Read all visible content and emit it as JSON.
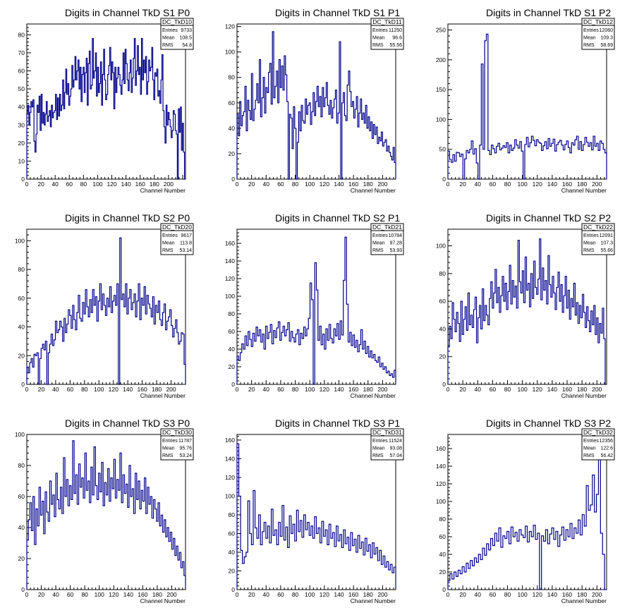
{
  "chart_data": [
    {
      "type": "histogram",
      "title": "Digits in Channel TkD S1 P0",
      "xlabel": "Channel Number",
      "xlim": [
        0,
        224
      ],
      "ylim": [
        0,
        86
      ],
      "xticks": [
        0,
        20,
        40,
        60,
        80,
        100,
        120,
        140,
        160,
        180,
        200
      ],
      "yticks": [
        0,
        10,
        20,
        30,
        40,
        50,
        60,
        70,
        80
      ],
      "stats": {
        "name": "DC_TkD10",
        "entries_label": "Entries",
        "entries": "9733",
        "mean_label": "Mean",
        "mean": "108.5",
        "rms_label": "RMS",
        "rms": "54.8"
      },
      "values": [
        36,
        41,
        30,
        37,
        43,
        40,
        44,
        21,
        15,
        25,
        41,
        37,
        46,
        27,
        47,
        31,
        37,
        30,
        36,
        43,
        32,
        35,
        38,
        29,
        41,
        34,
        37,
        38,
        47,
        33,
        45,
        35,
        47,
        38,
        41,
        55,
        39,
        48,
        61,
        47,
        53,
        41,
        46,
        50,
        63,
        51,
        55,
        68,
        55,
        60,
        66,
        50,
        62,
        43,
        58,
        62,
        48,
        59,
        67,
        41,
        64,
        71,
        50,
        52,
        78,
        56,
        60,
        70,
        46,
        62,
        48,
        53,
        65,
        41,
        58,
        72,
        55,
        44,
        47,
        58,
        63,
        73,
        55,
        65,
        59,
        39,
        62,
        48,
        56,
        62,
        58,
        52,
        47,
        55,
        70,
        53,
        72,
        64,
        55,
        49,
        59,
        66,
        48,
        56,
        67,
        78,
        52,
        60,
        74,
        58,
        62,
        47,
        78,
        55,
        66,
        59,
        68,
        47,
        54,
        66,
        60,
        62,
        73,
        55,
        44,
        59,
        57,
        61,
        46,
        49,
        42,
        55,
        69,
        38,
        29,
        20,
        41,
        30,
        37,
        33,
        29,
        23,
        27,
        38,
        36,
        27,
        25,
        0,
        39,
        26,
        40,
        16,
        31,
        15,
        0
      ]
    },
    {
      "type": "histogram",
      "title": "Digits in Channel TkD S1 P1",
      "xlabel": "Channel Number",
      "xlim": [
        0,
        218
      ],
      "ylim": [
        0,
        122
      ],
      "xticks": [
        0,
        20,
        40,
        60,
        80,
        100,
        120,
        140,
        160,
        180,
        200
      ],
      "yticks": [
        0,
        20,
        40,
        60,
        80,
        100,
        120
      ],
      "stats": {
        "name": "DC_TkD11",
        "entries_label": "Entries",
        "entries": "11250",
        "mean_label": "Mean",
        "mean": "96.6",
        "rms_label": "RMS",
        "rms": "55.56"
      },
      "values": [
        51,
        34,
        61,
        42,
        50,
        53,
        73,
        38,
        62,
        54,
        47,
        83,
        46,
        55,
        62,
        75,
        60,
        94,
        49,
        64,
        80,
        52,
        72,
        68,
        84,
        91,
        59,
        116,
        64,
        73,
        85,
        60,
        94,
        72,
        89,
        70,
        97,
        82,
        61,
        0,
        51,
        48,
        24,
        57,
        40,
        0,
        29,
        53,
        38,
        58,
        46,
        44,
        63,
        51,
        58,
        60,
        43,
        53,
        68,
        50,
        61,
        73,
        57,
        65,
        49,
        72,
        57,
        64,
        76,
        58,
        51,
        62,
        48,
        56,
        63,
        70,
        44,
        52,
        108,
        0,
        60,
        68,
        50,
        46,
        74,
        85,
        69,
        57,
        61,
        48,
        55,
        65,
        41,
        52,
        63,
        47,
        52,
        44,
        58,
        40,
        49,
        38,
        45,
        32,
        43,
        35,
        41,
        28,
        33,
        30,
        37,
        26,
        29,
        31,
        22,
        26,
        21,
        18,
        15,
        25,
        13
      ]
    },
    {
      "type": "histogram",
      "title": "Digits in Channel TkD S1 P2",
      "xlabel": "Channel Number",
      "xlim": [
        0,
        213
      ],
      "ylim": [
        0,
        260
      ],
      "xticks": [
        0,
        20,
        40,
        60,
        80,
        100,
        120,
        140,
        160,
        180,
        200
      ],
      "yticks": [
        0,
        50,
        100,
        150,
        200,
        250
      ],
      "stats": {
        "name": "DC_TkD12",
        "entries_label": "Entries",
        "entries": "12060",
        "mean_label": "Mean",
        "mean": "109.3",
        "rms_label": "RMS",
        "rms": "58.69"
      },
      "values": [
        47,
        33,
        28,
        41,
        30,
        45,
        44,
        38,
        42,
        0,
        34,
        48,
        44,
        50,
        64,
        42,
        51,
        27,
        0,
        57,
        193,
        50,
        232,
        243,
        48,
        41,
        57,
        51,
        44,
        55,
        60,
        49,
        52,
        56,
        53,
        61,
        44,
        57,
        48,
        52,
        66,
        57,
        52,
        63,
        47,
        0,
        58,
        70,
        54,
        61,
        72,
        65,
        56,
        66,
        62,
        60,
        48,
        56,
        63,
        51,
        68,
        55,
        60,
        67,
        47,
        58,
        62,
        65,
        57,
        49,
        58,
        64,
        53,
        44,
        61,
        57,
        66,
        72,
        50,
        63,
        48,
        58,
        70,
        62,
        55,
        61,
        49,
        72,
        55,
        60,
        48,
        64,
        60,
        50,
        44
      ]
    },
    {
      "type": "histogram",
      "title": "Digits in Channel TkD S2 P0",
      "xlabel": "Channel Number",
      "xlim": [
        0,
        220
      ],
      "ylim": [
        0,
        108
      ],
      "xticks": [
        0,
        20,
        40,
        60,
        80,
        100,
        120,
        140,
        160,
        180,
        200
      ],
      "yticks": [
        0,
        20,
        40,
        60,
        80,
        100
      ],
      "stats": {
        "name": "DC_TkD20",
        "entries_label": "Entries",
        "entries": "9617",
        "mean_label": "Mean",
        "mean": "113.8",
        "rms_label": "RMS",
        "rms": "53.14"
      },
      "values": [
        12,
        8,
        15,
        18,
        12,
        21,
        20,
        22,
        0,
        18,
        25,
        28,
        24,
        30,
        0,
        22,
        28,
        35,
        27,
        31,
        44,
        36,
        38,
        44,
        40,
        30,
        46,
        36,
        42,
        52,
        48,
        39,
        55,
        45,
        38,
        50,
        62,
        46,
        44,
        57,
        49,
        66,
        54,
        47,
        59,
        50,
        66,
        55,
        61,
        44,
        58,
        70,
        52,
        63,
        55,
        48,
        60,
        54,
        68,
        50,
        58,
        62,
        55,
        70,
        0,
        102,
        59,
        63,
        54,
        70,
        49,
        60,
        66,
        52,
        57,
        63,
        47,
        58,
        70,
        45,
        60,
        55,
        68,
        49,
        62,
        56,
        53,
        47,
        61,
        42,
        55,
        50,
        58,
        45,
        41,
        50,
        56,
        38,
        44,
        47,
        52,
        41,
        33,
        39,
        45,
        36,
        28,
        30,
        36,
        35,
        14
      ]
    },
    {
      "type": "histogram",
      "title": "Digits in Channel TkD S2 P1",
      "xlabel": "Channel Number",
      "xlim": [
        0,
        218
      ],
      "ylim": [
        0,
        176
      ],
      "xticks": [
        0,
        20,
        40,
        60,
        80,
        100,
        120,
        140,
        160,
        180,
        200
      ],
      "yticks": [
        0,
        20,
        40,
        60,
        80,
        100,
        120,
        140,
        160
      ],
      "stats": {
        "name": "DC_TkD21",
        "entries_label": "Entries",
        "entries": "10784",
        "mean_label": "Mean",
        "mean": "97.28",
        "rms_label": "RMS",
        "rms": "53.93"
      },
      "values": [
        32,
        27,
        36,
        46,
        40,
        55,
        44,
        60,
        51,
        43,
        58,
        49,
        65,
        55,
        62,
        48,
        57,
        40,
        66,
        52,
        59,
        68,
        46,
        61,
        53,
        64,
        71,
        50,
        59,
        66,
        55,
        62,
        70,
        49,
        60,
        53,
        48,
        57,
        62,
        45,
        58,
        52,
        65,
        55,
        63,
        75,
        115,
        96,
        0,
        138,
        107,
        50,
        66,
        45,
        57,
        40,
        63,
        50,
        68,
        52,
        47,
        63,
        55,
        69,
        51,
        72,
        56,
        118,
        167,
        91,
        48,
        59,
        44,
        56,
        42,
        50,
        37,
        45,
        62,
        40,
        49,
        35,
        43,
        31,
        38,
        30,
        34,
        27,
        25,
        31,
        20,
        24,
        17,
        20,
        13,
        15,
        10,
        12,
        8,
        16
      ]
    },
    {
      "type": "histogram",
      "title": "Digits in Channel TkD S2 P2",
      "xlabel": "Channel Number",
      "xlim": [
        0,
        213
      ],
      "ylim": [
        0,
        112
      ],
      "xticks": [
        0,
        20,
        40,
        60,
        80,
        100,
        120,
        140,
        160,
        180,
        200
      ],
      "yticks": [
        0,
        20,
        40,
        60,
        80,
        100
      ],
      "stats": {
        "name": "DC_TkD22",
        "entries_label": "Entries",
        "entries": "12091",
        "mean_label": "Mean",
        "mean": "107.3",
        "rms_label": "RMS",
        "rms": "55.66"
      },
      "values": [
        27,
        42,
        33,
        59,
        47,
        38,
        52,
        44,
        31,
        60,
        36,
        47,
        56,
        39,
        66,
        43,
        50,
        41,
        54,
        63,
        30,
        48,
        57,
        40,
        69,
        46,
        57,
        50,
        43,
        62,
        74,
        55,
        66,
        83,
        59,
        70,
        52,
        64,
        78,
        60,
        73,
        54,
        67,
        86,
        58,
        75,
        63,
        71,
        55,
        104,
        74,
        66,
        82,
        59,
        92,
        68,
        73,
        56,
        80,
        62,
        89,
        70,
        65,
        76,
        105,
        61,
        84,
        68,
        75,
        58,
        93,
        72,
        63,
        78,
        66,
        54,
        70,
        81,
        60,
        72,
        52,
        64,
        78,
        55,
        68,
        47,
        62,
        56,
        73,
        50,
        59,
        44,
        57,
        48,
        65,
        52,
        41,
        56,
        46,
        38,
        53,
        43,
        57,
        36,
        48,
        30,
        44,
        37,
        55,
        33,
        0
      ]
    },
    {
      "type": "histogram",
      "title": "Digits in Channel TkD S3 P0",
      "xlabel": "Channel Number",
      "xlim": [
        0,
        219
      ],
      "ylim": [
        0,
        100
      ],
      "xticks": [
        0,
        20,
        40,
        60,
        80,
        100,
        120,
        140,
        160,
        180,
        200
      ],
      "yticks": [
        0,
        20,
        40,
        60,
        80,
        100
      ],
      "stats": {
        "name": "DC_TkD30",
        "entries_label": "Entries",
        "entries": "11787",
        "mean_label": "Mean",
        "mean": "95.76",
        "rms_label": "RMS",
        "rms": "53.24"
      },
      "values": [
        32,
        45,
        56,
        38,
        60,
        29,
        52,
        41,
        66,
        48,
        57,
        36,
        63,
        50,
        44,
        70,
        55,
        61,
        47,
        75,
        58,
        52,
        66,
        49,
        85,
        60,
        71,
        54,
        67,
        58,
        96,
        62,
        74,
        55,
        81,
        66,
        72,
        59,
        88,
        64,
        70,
        56,
        79,
        61,
        92,
        67,
        58,
        75,
        63,
        82,
        54,
        69,
        61,
        78,
        57,
        72,
        65,
        84,
        59,
        71,
        64,
        88,
        56,
        74,
        62,
        68,
        53,
        80,
        60,
        65,
        49,
        75,
        58,
        70,
        52,
        64,
        57,
        72,
        49,
        66,
        55,
        60,
        46,
        58,
        52,
        44,
        56,
        41,
        48,
        37,
        45,
        34,
        40,
        31,
        37,
        26,
        33,
        22,
        28,
        19,
        24,
        14,
        18,
        9
      ]
    },
    {
      "type": "histogram",
      "title": "Digits in Channel TkD S3 P1",
      "xlabel": "Channel Number",
      "xlim": [
        0,
        218
      ],
      "ylim": [
        0,
        166
      ],
      "xticks": [
        0,
        20,
        40,
        60,
        80,
        100,
        120,
        140,
        160,
        180,
        200
      ],
      "yticks": [
        0,
        20,
        40,
        60,
        80,
        100,
        120,
        140,
        160
      ],
      "stats": {
        "name": "DC_TkD31",
        "entries_label": "Entries",
        "entries": "11524",
        "mean_label": "Mean",
        "mean": "93.08",
        "rms_label": "RMS",
        "rms": "57.04"
      },
      "values": [
        156,
        100,
        42,
        28,
        35,
        40,
        95,
        60,
        48,
        106,
        66,
        55,
        80,
        48,
        62,
        72,
        55,
        68,
        50,
        86,
        58,
        64,
        48,
        72,
        57,
        90,
        53,
        67,
        45,
        79,
        60,
        70,
        52,
        85,
        62,
        74,
        56,
        80,
        64,
        72,
        58,
        68,
        55,
        78,
        60,
        66,
        50,
        73,
        57,
        64,
        48,
        70,
        55,
        61,
        46,
        68,
        52,
        59,
        45,
        64,
        49,
        56,
        42,
        61,
        47,
        54,
        40,
        58,
        44,
        51,
        37,
        55,
        41,
        48,
        34,
        50,
        38,
        45,
        31,
        42,
        27,
        36,
        24,
        30,
        21,
        27,
        18,
        24
      ]
    },
    {
      "type": "histogram",
      "title": "Digits in Channel TkD S3 P2",
      "xlabel": "Channel Number",
      "xlim": [
        0,
        213
      ],
      "ylim": [
        0,
        176
      ],
      "xticks": [
        0,
        20,
        40,
        60,
        80,
        100,
        120,
        140,
        160,
        180,
        200
      ],
      "yticks": [
        0,
        20,
        40,
        60,
        80,
        100,
        120,
        140,
        160
      ],
      "stats": {
        "name": "DC_TkD32",
        "entries_label": "Entries",
        "entries": "12356",
        "mean_label": "Mean",
        "mean": "122.6",
        "rms_label": "RMS",
        "rms": "56.42"
      },
      "values": [
        10,
        18,
        12,
        20,
        15,
        22,
        18,
        26,
        20,
        30,
        24,
        33,
        27,
        36,
        31,
        40,
        34,
        47,
        39,
        52,
        45,
        58,
        50,
        64,
        55,
        70,
        48,
        61,
        58,
        66,
        52,
        71,
        60,
        65,
        55,
        68,
        62,
        59,
        72,
        54,
        66,
        60,
        73,
        57,
        64,
        0,
        61,
        55,
        68,
        52,
        63,
        70,
        57,
        66,
        49,
        62,
        71,
        56,
        68,
        60,
        75,
        58,
        70,
        64,
        79,
        62,
        85,
        72,
        118,
        90,
        96,
        130,
        88,
        108,
        148,
        64,
        40,
        0
      ]
    }
  ],
  "style": {
    "line_color": "#00008b",
    "axis_color": "#000000",
    "background": "#ffffff"
  }
}
